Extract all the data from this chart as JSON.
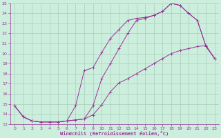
{
  "xlabel": "Windchill (Refroidissement éolien,°C)",
  "background_color": "#cceedd",
  "grid_color": "#aaccbb",
  "line_color": "#993399",
  "xlim": [
    -0.5,
    23.5
  ],
  "ylim": [
    13,
    25
  ],
  "xticks": [
    0,
    1,
    2,
    3,
    4,
    5,
    6,
    7,
    8,
    9,
    10,
    11,
    12,
    13,
    14,
    15,
    16,
    17,
    18,
    19,
    20,
    21,
    22,
    23
  ],
  "yticks": [
    13,
    14,
    15,
    16,
    17,
    18,
    19,
    20,
    21,
    22,
    23,
    24,
    25
  ],
  "line1_x": [
    0,
    1,
    2,
    3,
    4,
    5,
    6,
    7,
    8,
    9,
    10,
    11,
    12,
    13,
    14,
    15,
    16,
    17,
    18,
    19,
    20,
    21,
    22,
    23
  ],
  "line1_y": [
    14.8,
    13.7,
    13.3,
    13.2,
    13.2,
    13.2,
    13.3,
    14.8,
    18.3,
    18.6,
    20.1,
    21.5,
    22.4,
    23.3,
    23.5,
    23.6,
    23.8,
    24.2,
    25.0,
    24.8,
    24.0,
    23.3,
    20.7,
    19.5
  ],
  "line2_x": [
    0,
    1,
    2,
    3,
    4,
    5,
    6,
    7,
    8,
    9,
    10,
    11,
    12,
    13,
    14,
    15,
    16,
    17,
    18,
    19,
    20,
    21,
    22,
    23
  ],
  "line2_y": [
    14.8,
    13.7,
    13.3,
    13.2,
    13.2,
    13.2,
    13.3,
    13.4,
    13.5,
    13.9,
    14.9,
    16.2,
    17.1,
    17.5,
    18.0,
    18.5,
    19.0,
    19.5,
    20.0,
    20.3,
    20.5,
    20.7,
    20.8,
    19.5
  ],
  "line3_x": [
    0,
    1,
    2,
    3,
    4,
    5,
    6,
    7,
    8,
    9,
    10,
    11,
    12,
    13,
    14,
    15,
    16,
    17,
    18,
    19,
    20,
    21,
    22,
    23
  ],
  "line3_y": [
    14.8,
    13.7,
    13.3,
    13.2,
    13.2,
    13.2,
    13.3,
    13.4,
    13.5,
    14.8,
    17.5,
    19.0,
    20.5,
    22.0,
    23.3,
    23.5,
    23.8,
    24.2,
    25.0,
    24.8,
    24.0,
    23.3,
    20.7,
    19.5
  ]
}
